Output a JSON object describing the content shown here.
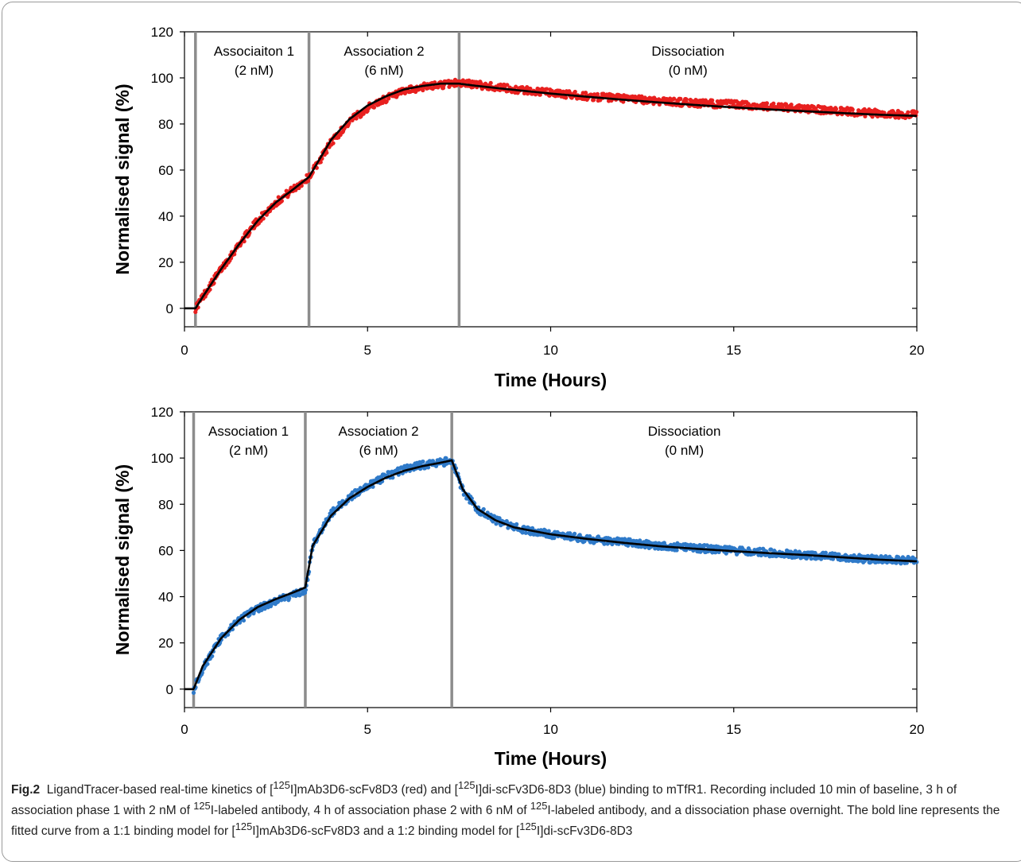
{
  "chart_data": [
    {
      "type": "scatter",
      "title": "",
      "xlabel": "Time (Hours)",
      "ylabel": "Normalised signal (%)",
      "xlim": [
        0,
        20
      ],
      "ylim": [
        -8,
        120
      ],
      "xticks": [
        0,
        5,
        10,
        15,
        20
      ],
      "yticks": [
        0,
        20,
        40,
        60,
        80,
        100,
        120
      ],
      "data_color": "#e8201f",
      "fit_color": "#000000",
      "phase_lines_x": [
        0.3,
        3.4,
        7.5
      ],
      "phases": [
        {
          "name": "Associaiton 1",
          "conc": "(2 nM)",
          "x": 1.9
        },
        {
          "name": "Association 2",
          "conc": "(6 nM)",
          "x": 5.45
        },
        {
          "name": "Dissociation",
          "conc": "(0 nM)",
          "x": 13.75
        }
      ],
      "series": [
        {
          "role": "data",
          "x": [
            0,
            0.3,
            0.5,
            1.0,
            1.5,
            2.0,
            2.5,
            3.0,
            3.4,
            4.0,
            4.5,
            5.0,
            5.5,
            6.0,
            6.5,
            7.0,
            7.5,
            8.0,
            9.0,
            10.0,
            11.0,
            12.0,
            13.0,
            14.0,
            15.0,
            16.0,
            17.0,
            18.0,
            19.0,
            20.0
          ],
          "y": [
            0,
            0,
            5,
            17,
            28,
            38,
            46,
            52,
            57,
            72,
            81,
            87,
            91,
            94,
            96,
            97,
            98,
            97,
            95,
            93.5,
            92,
            91,
            90,
            89,
            88.5,
            87.5,
            86.5,
            85.5,
            84.5,
            84
          ]
        },
        {
          "role": "fit",
          "x": [
            0,
            0.3,
            0.5,
            1.0,
            1.5,
            2.0,
            2.5,
            3.0,
            3.4,
            4.0,
            4.5,
            5.0,
            5.5,
            6.0,
            6.5,
            7.0,
            7.5,
            8.0,
            9.0,
            10.0,
            11.0,
            12.0,
            13.0,
            14.0,
            15.0,
            16.0,
            17.0,
            18.0,
            19.0,
            20.0
          ],
          "y": [
            0,
            0,
            5,
            17,
            28,
            38,
            46,
            52,
            57,
            73,
            82,
            88,
            92,
            95,
            96.5,
            97.5,
            97.5,
            96.5,
            94.8,
            93.2,
            91.8,
            90.5,
            89.3,
            88.2,
            87.2,
            86.3,
            85.5,
            84.7,
            84,
            83.5
          ]
        }
      ]
    },
    {
      "type": "scatter",
      "title": "",
      "xlabel": "Time (Hours)",
      "ylabel": "Normalised signal (%)",
      "xlim": [
        0,
        20
      ],
      "ylim": [
        -8,
        120
      ],
      "xticks": [
        0,
        5,
        10,
        15,
        20
      ],
      "yticks": [
        0,
        20,
        40,
        60,
        80,
        100,
        120
      ],
      "data_color": "#2f7ac9",
      "fit_color": "#000000",
      "phase_lines_x": [
        0.25,
        3.3,
        7.3
      ],
      "phases": [
        {
          "name": "Association 1",
          "conc": "(2 nM)",
          "x": 1.75
        },
        {
          "name": "Association 2",
          "conc": "(6 nM)",
          "x": 5.3
        },
        {
          "name": "Dissociation",
          "conc": "(0 nM)",
          "x": 13.65
        }
      ],
      "series": [
        {
          "role": "data",
          "x": [
            0,
            0.25,
            0.5,
            1.0,
            1.5,
            2.0,
            2.5,
            3.0,
            3.3,
            3.5,
            4.0,
            4.5,
            5.0,
            5.5,
            6.0,
            6.5,
            7.0,
            7.3,
            7.6,
            8.0,
            8.5,
            9.0,
            10.0,
            11.0,
            12.0,
            13.0,
            14.0,
            15.0,
            16.0,
            17.0,
            18.0,
            19.0,
            20.0
          ],
          "y": [
            0,
            0,
            9,
            22,
            30,
            35,
            38,
            41,
            42,
            62,
            76,
            83,
            88,
            92,
            95,
            97,
            98,
            99,
            86,
            78,
            73,
            70,
            67,
            65,
            63.5,
            62,
            61,
            60,
            59,
            58,
            57,
            56,
            55.5
          ]
        },
        {
          "role": "fit",
          "x": [
            0,
            0.25,
            0.5,
            1.0,
            1.5,
            2.0,
            2.5,
            3.0,
            3.3,
            3.5,
            4.0,
            4.5,
            5.0,
            5.5,
            6.0,
            6.5,
            7.0,
            7.3,
            7.6,
            8.0,
            8.5,
            9.0,
            10.0,
            11.0,
            12.0,
            13.0,
            14.0,
            15.0,
            16.0,
            17.0,
            18.0,
            19.0,
            20.0
          ],
          "y": [
            0,
            0,
            10,
            22,
            30,
            35.5,
            39,
            42,
            44,
            62,
            75,
            82.5,
            87.5,
            91.5,
            94.5,
            96.5,
            98,
            99,
            86.5,
            78,
            73,
            70,
            67,
            65,
            63.3,
            61.8,
            60.7,
            59.7,
            58.8,
            58,
            57,
            56,
            55.3
          ]
        }
      ]
    }
  ],
  "caption": {
    "label": "Fig.2",
    "p1": "LigandTracer-based real-time kinetics of [",
    "s1": "125",
    "p2": "I]mAb3D6-scFv8D3 (red) and [",
    "s2": "125",
    "p3": "I]di-scFv3D6-8D3 (blue) binding to mTfR1. Recording included 10 min of baseline, 3 h of association phase 1 with 2 nM of ",
    "s3": "125",
    "p4": "I-labeled antibody, 4 h of association phase 2 with 6 nM of ",
    "s4": "125",
    "p5": "I-labeled antibody, and a dissociation phase overnight. The bold line represents the fitted curve from a 1:1 binding model for [",
    "s5": "125",
    "p6": "I]mAb3D6-scFv8D3 and a 1:2 binding model for [",
    "s6": "125",
    "p7": "I]di-scFv3D6-8D3"
  }
}
